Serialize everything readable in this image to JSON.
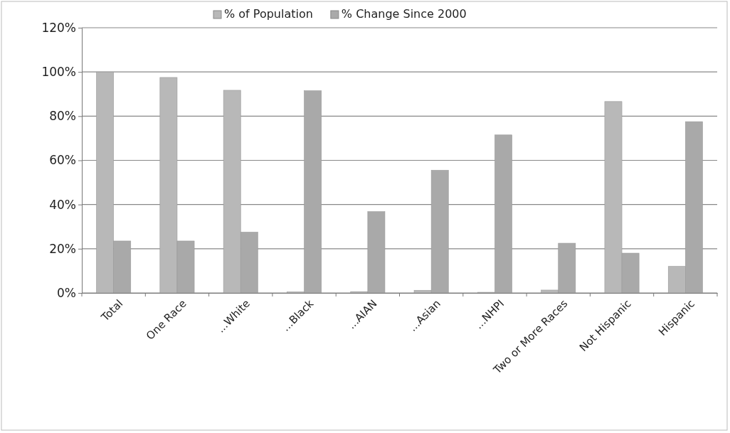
{
  "chart_data": {
    "type": "bar",
    "categories": [
      "Total",
      "One Race",
      "...White",
      "...Black",
      "...AIAN",
      "...Asian",
      "...NHPI",
      "Two or More Races",
      "Not Hispanic",
      "Hispanic"
    ],
    "series": [
      {
        "name": "% of Population",
        "color": "#b8b8b8",
        "values": [
          100,
          97.5,
          91.7,
          0.5,
          0.6,
          1.2,
          0.3,
          1.3,
          86.6,
          12
        ]
      },
      {
        "name": "% Change Since 2000",
        "color": "#a9a9a9",
        "values": [
          23.5,
          23.5,
          27.5,
          91.5,
          36.8,
          55.5,
          71.5,
          22.5,
          18,
          77.5
        ]
      }
    ],
    "ylim": [
      0,
      120
    ],
    "yticks": [
      {
        "value": 0,
        "label": "0%"
      },
      {
        "value": 20,
        "label": "20%"
      },
      {
        "value": 40,
        "label": "40%"
      },
      {
        "value": 60,
        "label": "60%"
      },
      {
        "value": 80,
        "label": "80%"
      },
      {
        "value": 100,
        "label": "100%"
      },
      {
        "value": 120,
        "label": "120%"
      }
    ],
    "grid": "y",
    "legend": "top"
  }
}
